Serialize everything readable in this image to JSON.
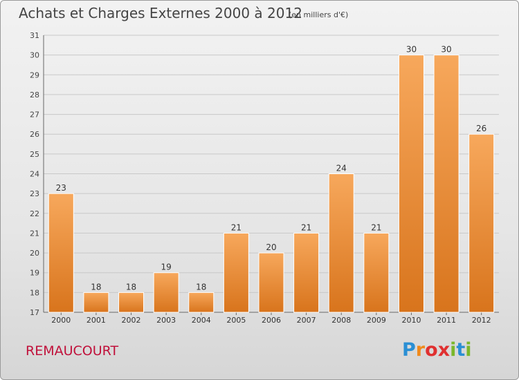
{
  "title": "Achats et Charges Externes 2000 à 2012",
  "subtitle": "(en milliers d'€)",
  "place": "REMAUCOURT",
  "logo": {
    "p": "P",
    "r": "r",
    "o": "o",
    "x": "x",
    "i1": "i",
    "t": "t",
    "i2": "i"
  },
  "colors": {
    "bar_top": "#f7a85c",
    "bar_bottom": "#d8741c",
    "place": "#c0103a"
  },
  "chart_data": {
    "type": "bar",
    "categories": [
      "2000",
      "2001",
      "2002",
      "2003",
      "2004",
      "2005",
      "2006",
      "2007",
      "2008",
      "2009",
      "2010",
      "2011",
      "2012"
    ],
    "values": [
      23,
      18,
      18,
      19,
      18,
      21,
      20,
      21,
      24,
      21,
      30,
      30,
      26
    ],
    "ylim": [
      17,
      31
    ],
    "yticks": [
      17,
      18,
      19,
      20,
      21,
      22,
      23,
      24,
      25,
      26,
      27,
      28,
      29,
      30,
      31
    ],
    "grid": true,
    "data_labels": true
  }
}
